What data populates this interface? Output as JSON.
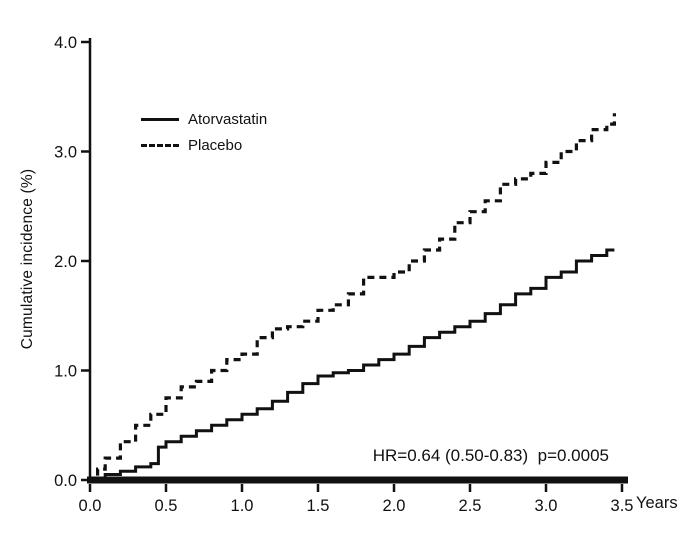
{
  "chart_data": {
    "type": "line",
    "subtype": "kaplan-meier-step",
    "title": "",
    "xlabel": "Years",
    "ylabel": "Cumulative incidence (%)",
    "xlim": [
      0,
      3.5
    ],
    "ylim": [
      0,
      4.0
    ],
    "grid": false,
    "legend_position": "upper-left-inside",
    "annotation": "HR=0.64 (0.50-0.83)  p=0.0005",
    "x_ticks": [
      0.0,
      0.5,
      1.0,
      1.5,
      2.0,
      2.5,
      3.0,
      3.5
    ],
    "x_tick_labels": [
      "0.0",
      "0.5",
      "1.0",
      "1.5",
      "2.0",
      "2.5",
      "3.0",
      "3.5"
    ],
    "y_ticks": [
      0.0,
      1.0,
      2.0,
      3.0,
      4.0
    ],
    "y_tick_labels": [
      "0.0",
      "1.0",
      "2.0",
      "3.0",
      "4.0"
    ],
    "line_color": "#111111",
    "series": [
      {
        "name": "Atorvastatin",
        "style": "solid",
        "x": [
          0.0,
          0.1,
          0.2,
          0.3,
          0.4,
          0.45,
          0.5,
          0.6,
          0.7,
          0.8,
          0.9,
          1.0,
          1.1,
          1.2,
          1.3,
          1.4,
          1.5,
          1.6,
          1.7,
          1.8,
          1.9,
          2.0,
          2.1,
          2.2,
          2.3,
          2.4,
          2.5,
          2.6,
          2.7,
          2.8,
          2.9,
          3.0,
          3.1,
          3.2,
          3.3,
          3.4,
          3.45
        ],
        "y": [
          0.0,
          0.05,
          0.08,
          0.12,
          0.15,
          0.3,
          0.35,
          0.4,
          0.45,
          0.5,
          0.55,
          0.6,
          0.65,
          0.72,
          0.8,
          0.88,
          0.95,
          0.98,
          1.0,
          1.05,
          1.1,
          1.15,
          1.22,
          1.3,
          1.35,
          1.4,
          1.45,
          1.52,
          1.6,
          1.7,
          1.75,
          1.85,
          1.9,
          2.0,
          2.05,
          2.1,
          2.1
        ]
      },
      {
        "name": "Placebo",
        "style": "dashed",
        "x": [
          0.0,
          0.05,
          0.1,
          0.2,
          0.3,
          0.4,
          0.5,
          0.6,
          0.7,
          0.8,
          0.9,
          1.0,
          1.1,
          1.2,
          1.3,
          1.4,
          1.5,
          1.6,
          1.7,
          1.8,
          1.9,
          2.0,
          2.1,
          2.2,
          2.3,
          2.4,
          2.5,
          2.6,
          2.7,
          2.8,
          2.9,
          3.0,
          3.1,
          3.2,
          3.3,
          3.4,
          3.45
        ],
        "y": [
          0.0,
          0.1,
          0.2,
          0.35,
          0.5,
          0.6,
          0.75,
          0.85,
          0.9,
          1.0,
          1.1,
          1.15,
          1.3,
          1.38,
          1.4,
          1.45,
          1.55,
          1.6,
          1.7,
          1.85,
          1.85,
          1.9,
          2.0,
          2.1,
          2.2,
          2.35,
          2.45,
          2.55,
          2.7,
          2.75,
          2.8,
          2.9,
          3.0,
          3.1,
          3.2,
          3.25,
          3.35
        ]
      }
    ]
  }
}
